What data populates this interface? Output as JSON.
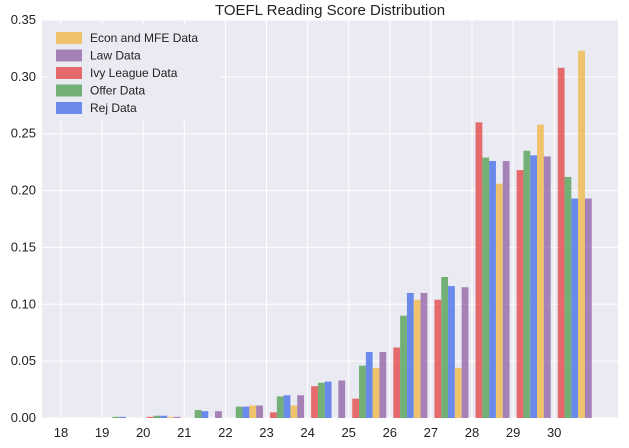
{
  "chart_data": {
    "type": "bar",
    "title": "TOEFL Reading Score Distribution",
    "xlabel": "",
    "ylabel": "",
    "categories": [
      "18",
      "19",
      "20",
      "21",
      "22",
      "23",
      "24",
      "25",
      "26",
      "27",
      "28",
      "29",
      "30"
    ],
    "ylim": [
      0,
      0.35
    ],
    "yticks": [
      "0.00",
      "0.05",
      "0.10",
      "0.15",
      "0.20",
      "0.25",
      "0.30",
      "0.35"
    ],
    "grid": true,
    "legend_position": "top-left",
    "series": [
      {
        "name": "Econ and MFE Data",
        "color": "#F0B84A",
        "values": [
          0,
          0,
          0.001,
          0.0,
          0.011,
          0.011,
          0.0,
          0.044,
          0.104,
          0.044,
          0.206,
          0.258,
          0.323
        ]
      },
      {
        "name": "Law Data",
        "color": "#9467A8",
        "values": [
          0,
          0,
          0.001,
          0.006,
          0.011,
          0.02,
          0.033,
          0.058,
          0.11,
          0.115,
          0.226,
          0.23,
          0.193
        ]
      },
      {
        "name": "Ivy League Data",
        "color": "#E24A4A",
        "values": [
          0,
          0,
          0.001,
          0.0,
          0.0,
          0.005,
          0.028,
          0.017,
          0.062,
          0.104,
          0.26,
          0.218,
          0.308
        ]
      },
      {
        "name": "Offer Data",
        "color": "#55A155",
        "values": [
          0,
          0.001,
          0.002,
          0.007,
          0.01,
          0.019,
          0.031,
          0.046,
          0.09,
          0.124,
          0.229,
          0.235,
          0.212
        ]
      },
      {
        "name": "Rej Data",
        "color": "#4A72E8",
        "values": [
          0,
          0.001,
          0.002,
          0.006,
          0.01,
          0.02,
          0.032,
          0.058,
          0.11,
          0.116,
          0.226,
          0.231,
          0.193
        ]
      }
    ]
  }
}
